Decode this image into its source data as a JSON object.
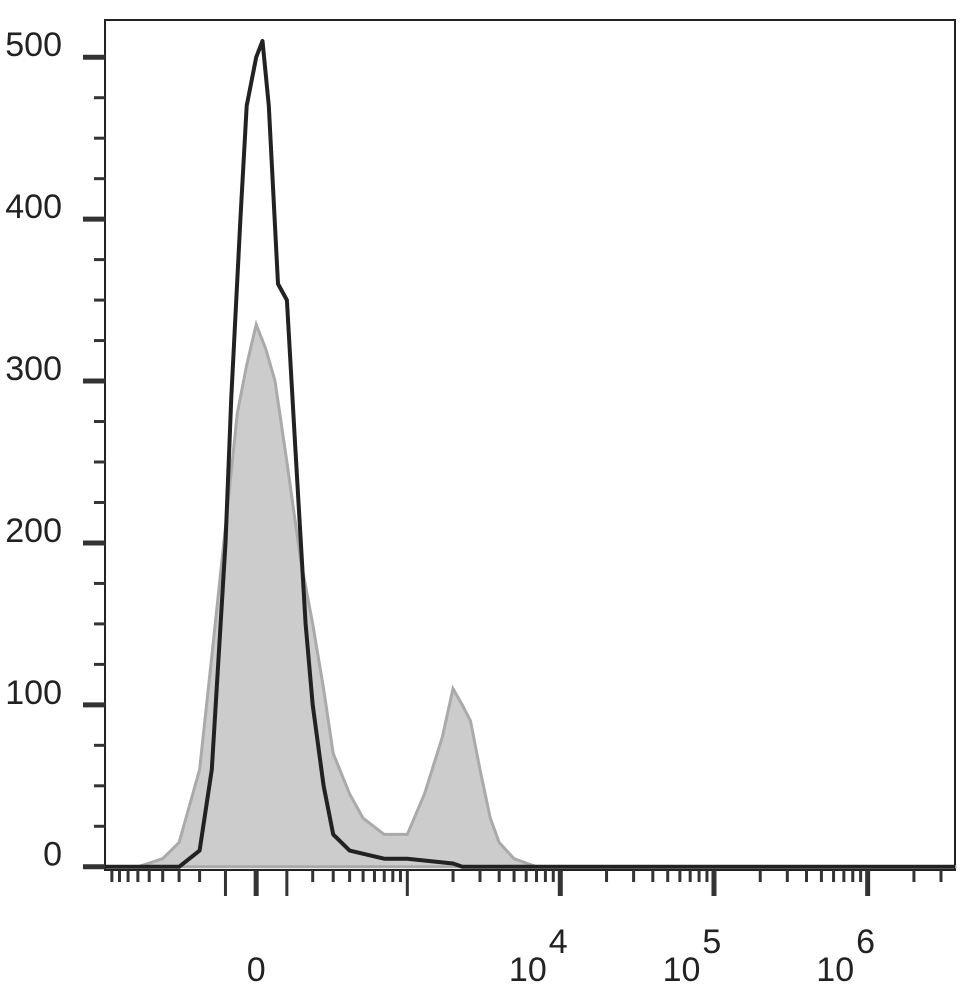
{
  "chart_data": {
    "type": "histogram-overlay",
    "xscale": "asinh",
    "xlinear_width": 105,
    "xlim": [
      -1000,
      3700000
    ],
    "xticks": [
      {
        "value": 0,
        "label": "0"
      },
      {
        "value": 10000,
        "label": "10",
        "exponent": "4"
      },
      {
        "value": 100000,
        "label": "10",
        "exponent": "5"
      },
      {
        "value": 1000000,
        "label": "10",
        "exponent": "6"
      }
    ],
    "xminorticks": [
      -900,
      -800,
      -700,
      -600,
      -500,
      -400,
      -300,
      -200,
      -100,
      100,
      200,
      300,
      400,
      500,
      600,
      700,
      800,
      900,
      1000,
      2000,
      3000,
      4000,
      5000,
      6000,
      7000,
      8000,
      9000,
      20000,
      30000,
      40000,
      50000,
      60000,
      70000,
      80000,
      90000,
      200000,
      300000,
      400000,
      500000,
      600000,
      700000,
      800000,
      900000,
      2000000,
      3000000
    ],
    "ylim": [
      -2,
      523
    ],
    "yticks": [
      0,
      100,
      200,
      300,
      400,
      500
    ],
    "yminorticks": [
      25,
      50,
      75,
      125,
      150,
      175,
      225,
      250,
      275,
      325,
      350,
      375,
      425,
      450,
      475,
      525
    ],
    "series": [
      {
        "style": "area",
        "color": "#cccccc",
        "edge": "#aaaaaa",
        "x": [
          -1000,
          -600,
          -400,
          -300,
          -200,
          -150,
          -100,
          -60,
          -30,
          0,
          30,
          60,
          100,
          150,
          200,
          250,
          300,
          400,
          500,
          700,
          1000,
          1300,
          1700,
          2000,
          2300,
          2600,
          3000,
          3500,
          4000,
          5000,
          7000,
          3700000
        ],
        "values": [
          0,
          0,
          5,
          15,
          60,
          130,
          210,
          280,
          310,
          335,
          320,
          300,
          250,
          190,
          150,
          110,
          70,
          45,
          30,
          20,
          20,
          45,
          80,
          110,
          100,
          90,
          60,
          30,
          15,
          5,
          0,
          0
        ]
      },
      {
        "style": "line",
        "color": "#222222",
        "x": [
          -1000,
          -300,
          -200,
          -150,
          -100,
          -80,
          -50,
          -30,
          0,
          20,
          40,
          70,
          100,
          130,
          170,
          200,
          250,
          300,
          400,
          700,
          1000,
          2000,
          2300,
          3700000
        ],
        "values": [
          0,
          0,
          10,
          60,
          200,
          290,
          400,
          470,
          500,
          510,
          470,
          360,
          350,
          260,
          150,
          100,
          50,
          20,
          10,
          5,
          5,
          2,
          0,
          0
        ]
      }
    ]
  }
}
